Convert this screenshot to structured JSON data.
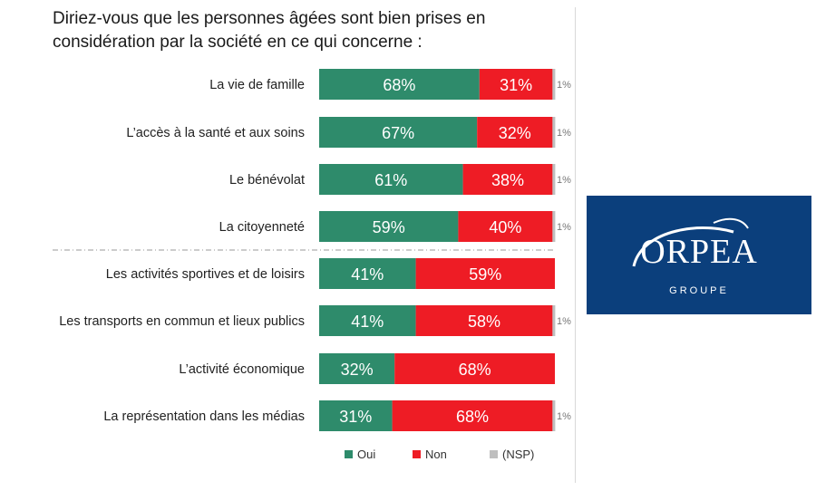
{
  "title": {
    "line1": "Diriez-vous que les personnes âgées sont bien prises en",
    "line2": "considération par la société en ce qui concerne :"
  },
  "logo": {
    "name": "ORPEA",
    "sub": "GROUPE",
    "background": "#0b3f7c"
  },
  "colors": {
    "oui": "#2e8b6b",
    "non": "#ee1c25",
    "nsp": "#bfbfbf"
  },
  "chart_data": {
    "type": "bar",
    "orientation": "horizontal",
    "stacked": true,
    "categories": [
      "La vie de famille",
      "L’accès à la santé et aux soins",
      "Le bénévolat",
      "La citoyenneté",
      "Les activités sportives et de loisirs",
      "Les transports en commun et lieux publics",
      "L’activité économique",
      "La représentation dans les médias"
    ],
    "series": [
      {
        "name": "Oui",
        "values": [
          68,
          67,
          61,
          59,
          41,
          41,
          32,
          31
        ],
        "labels": [
          "68%",
          "67%",
          "61%",
          "59%",
          "41%",
          "41%",
          "32%",
          "31%"
        ]
      },
      {
        "name": "Non",
        "values": [
          31,
          32,
          38,
          40,
          59,
          58,
          68,
          68
        ],
        "labels": [
          "31%",
          "32%",
          "38%",
          "40%",
          "59%",
          "58%",
          "68%",
          "68%"
        ]
      },
      {
        "name": "(NSP)",
        "values": [
          1,
          1,
          1,
          1,
          0,
          1,
          0,
          1
        ],
        "labels": [
          "1%",
          "1%",
          "1%",
          "1%",
          "",
          "1%",
          "",
          "1%"
        ]
      }
    ],
    "separator_after_index": 3,
    "legend_position": "bottom",
    "xlim": [
      0,
      100
    ],
    "grid": false
  }
}
